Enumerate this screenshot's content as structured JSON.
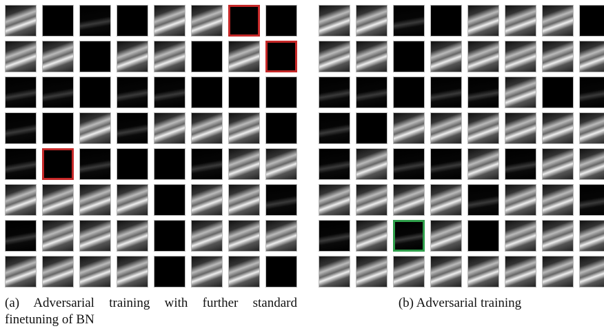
{
  "subfigures": [
    {
      "caption": "(a) Adversarial training with further standard finetuning of BN"
    },
    {
      "caption": "(b) Adversarial training"
    }
  ]
}
